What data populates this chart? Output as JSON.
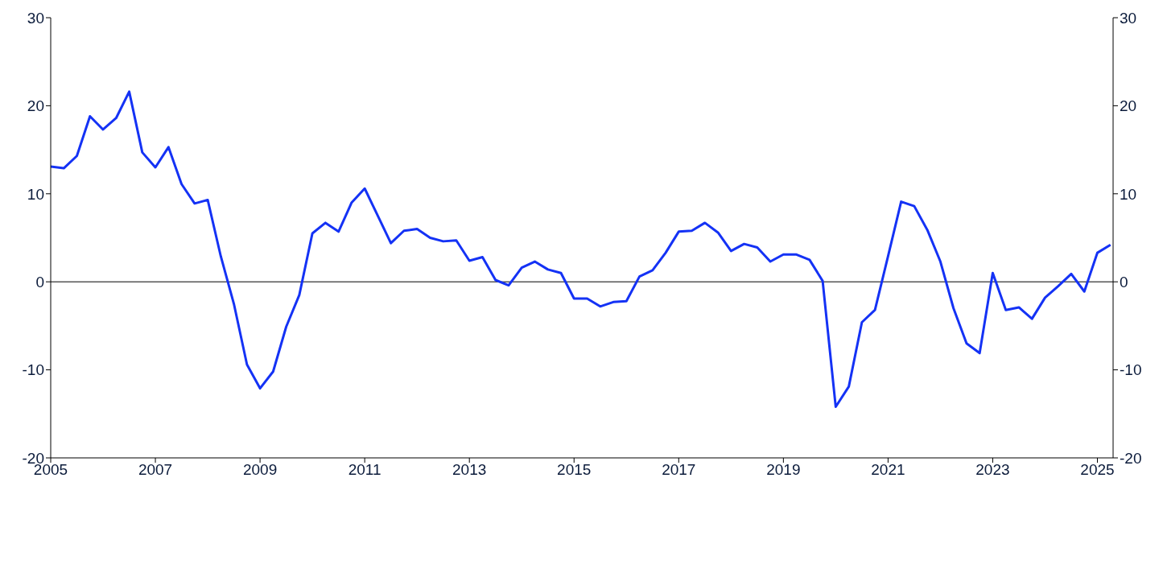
{
  "chart_data": {
    "type": "line",
    "x": [
      2005,
      2005.25,
      2005.5,
      2005.75,
      2006,
      2006.25,
      2006.5,
      2006.75,
      2007,
      2007.25,
      2007.5,
      2007.75,
      2008,
      2008.25,
      2008.5,
      2008.75,
      2009,
      2009.25,
      2009.5,
      2009.75,
      2010,
      2010.25,
      2010.5,
      2010.75,
      2011,
      2011.25,
      2011.5,
      2011.75,
      2012,
      2012.25,
      2012.5,
      2012.75,
      2013,
      2013.25,
      2013.5,
      2013.75,
      2014,
      2014.25,
      2014.5,
      2014.75,
      2015,
      2015.25,
      2015.5,
      2015.75,
      2016,
      2016.25,
      2016.5,
      2016.75,
      2017,
      2017.25,
      2017.5,
      2017.75,
      2018,
      2018.25,
      2018.5,
      2018.75,
      2019,
      2019.25,
      2019.5,
      2019.75,
      2020,
      2020.25,
      2020.5,
      2020.75,
      2021,
      2021.25,
      2021.5,
      2021.75,
      2022,
      2022.25,
      2022.5,
      2022.75,
      2023,
      2023.25,
      2023.5,
      2023.75,
      2024,
      2024.25,
      2024.5,
      2024.75,
      2025,
      2025.25
    ],
    "series": [
      {
        "color": "#1432f5",
        "values": [
          13.1,
          12.9,
          14.3,
          18.8,
          17.3,
          18.6,
          21.6,
          14.7,
          13.0,
          15.3,
          11.1,
          8.9,
          9.3,
          2.9,
          -2.5,
          -9.4,
          -12.1,
          -10.2,
          -5.1,
          -1.5,
          5.5,
          6.7,
          5.7,
          9.0,
          10.6,
          7.5,
          4.4,
          5.8,
          6.0,
          5.0,
          4.6,
          4.7,
          2.4,
          2.8,
          0.2,
          -0.4,
          1.6,
          2.3,
          1.4,
          1.0,
          -1.9,
          -1.9,
          -2.8,
          -2.3,
          -2.2,
          0.6,
          1.3,
          3.3,
          5.7,
          5.8,
          6.7,
          5.6,
          3.5,
          4.3,
          3.9,
          2.3,
          3.1,
          3.1,
          2.5,
          0.1,
          -14.2,
          -11.9,
          -4.6,
          -3.2,
          2.9,
          9.1,
          8.6,
          5.9,
          2.3,
          -3.0,
          -7.0,
          -8.1,
          1.0,
          -3.2,
          -2.9,
          -4.2,
          -1.8,
          -0.5,
          0.9,
          -1.1,
          3.3,
          4.2
        ]
      }
    ],
    "xlim": [
      2005,
      2025.3
    ],
    "xticks": [
      2005,
      2007,
      2009,
      2011,
      2013,
      2015,
      2017,
      2019,
      2021,
      2023,
      2025
    ],
    "ylim": [
      -20,
      30
    ],
    "yticks": [
      -20,
      -10,
      0,
      10,
      20,
      30
    ],
    "y2lim": [
      -20,
      30
    ],
    "y2ticks": [
      -20,
      -10,
      0,
      10,
      20,
      30
    ],
    "ref_lines": [
      {
        "axis": "y",
        "value": 0,
        "color": "#000000"
      }
    ],
    "grid": false,
    "legend": false,
    "marker": "none",
    "line_style": "solid"
  }
}
